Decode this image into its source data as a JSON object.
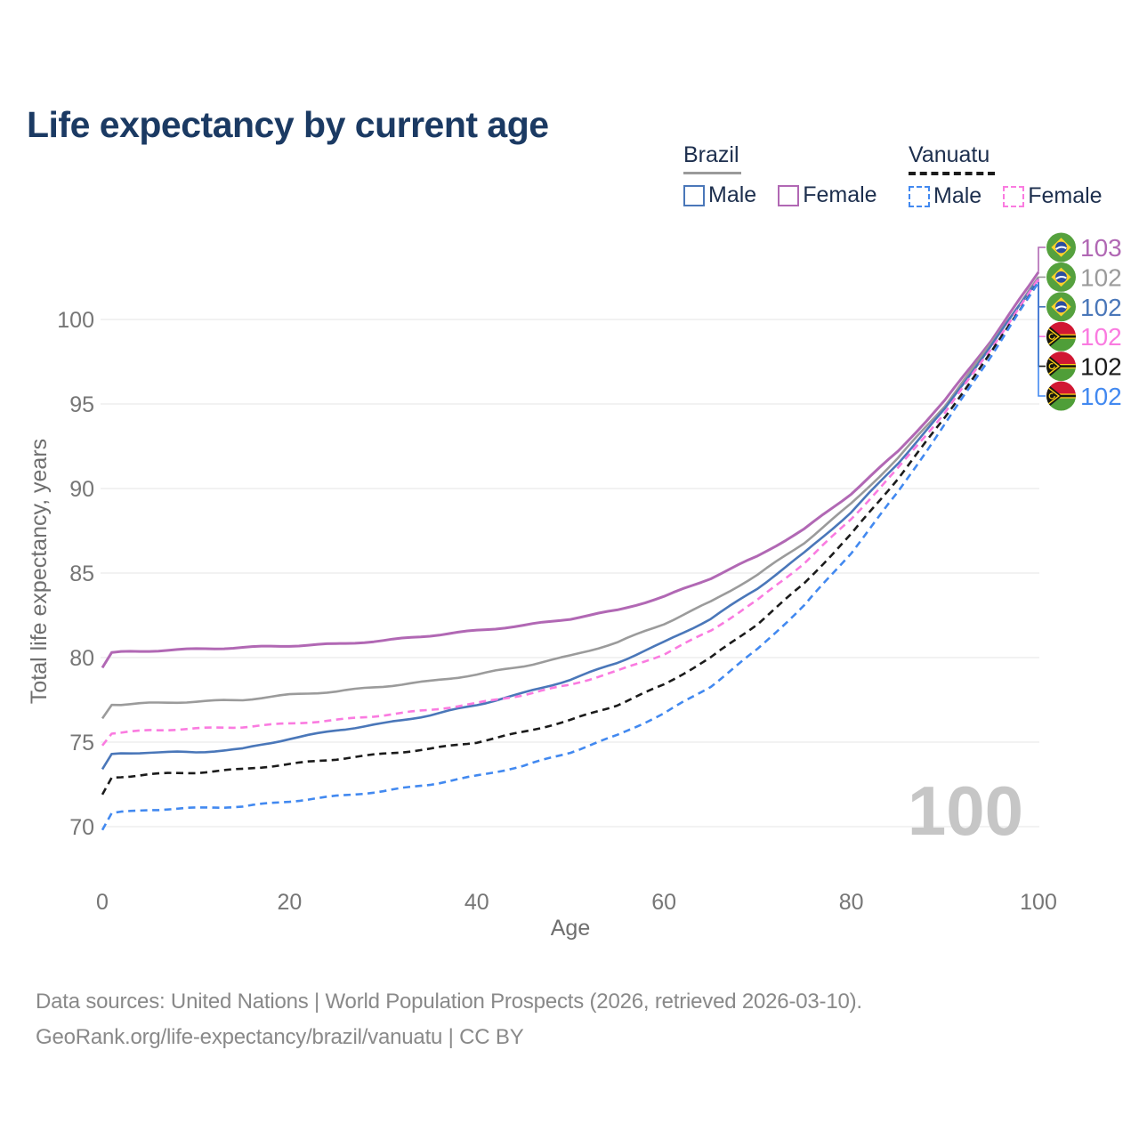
{
  "title": "Life expectancy by current age",
  "watermark": "100",
  "legend": {
    "groups": [
      {
        "label": "Brazil",
        "line_style": "solid",
        "underline_color": "#9a9a9a",
        "items": [
          {
            "label": "Male",
            "color": "#4a77b9"
          },
          {
            "label": "Female",
            "color": "#b168b4"
          }
        ]
      },
      {
        "label": "Vanuatu",
        "line_style": "dashed",
        "underline_color": "#1b1b1b",
        "items": [
          {
            "label": "Male",
            "color": "#4289f0"
          },
          {
            "label": "Female",
            "color": "#fa7be0"
          }
        ]
      }
    ]
  },
  "footer": {
    "line1": "Data sources: United Nations | World Population Prospects (2026, retrieved 2026-03-10).",
    "line2": "GeoRank.org/life-expectancy/brazil/vanuatu | CC BY"
  },
  "chart_data": {
    "type": "line",
    "title": "Life expectancy by current age",
    "xlabel": "Age",
    "ylabel": "Total life expectancy, years",
    "x_ticks": [
      0,
      20,
      40,
      60,
      80,
      100
    ],
    "y_ticks": [
      70,
      75,
      80,
      85,
      90,
      95,
      100
    ],
    "xlim": [
      0,
      100
    ],
    "ylim": [
      69,
      103.5
    ],
    "grid": "horizontal",
    "legend_position": "top-right",
    "x": [
      0,
      1,
      5,
      10,
      15,
      20,
      25,
      30,
      35,
      40,
      45,
      50,
      55,
      60,
      65,
      70,
      75,
      80,
      85,
      90,
      95,
      100
    ],
    "series": [
      {
        "id": "brazil-female",
        "name": "Brazil Female",
        "country": "Brazil",
        "sex": "Female",
        "color": "#b168b4",
        "line_style": "solid",
        "width": 3,
        "flag": "brazil",
        "end_label": "103",
        "values": [
          79.4,
          80.3,
          80.4,
          80.5,
          80.6,
          80.7,
          80.8,
          81.0,
          81.3,
          81.6,
          81.9,
          82.3,
          82.8,
          83.6,
          84.7,
          86.0,
          87.6,
          89.7,
          92.2,
          95.2,
          98.8,
          102.8
        ]
      },
      {
        "id": "brazil-both",
        "name": "Brazil Both sexes",
        "country": "Brazil",
        "sex": "Both",
        "color": "#9b9b9b",
        "line_style": "solid",
        "width": 2.6,
        "flag": "brazil",
        "end_label": "102",
        "values": [
          76.4,
          77.2,
          77.3,
          77.4,
          77.5,
          77.8,
          78.0,
          78.3,
          78.6,
          79.0,
          79.5,
          80.1,
          80.9,
          82.0,
          83.3,
          84.9,
          86.8,
          89.1,
          91.8,
          94.9,
          98.6,
          102.5
        ]
      },
      {
        "id": "brazil-male",
        "name": "Brazil Male",
        "country": "Brazil",
        "sex": "Male",
        "color": "#4a77b9",
        "line_style": "solid",
        "width": 2.6,
        "flag": "brazil",
        "end_label": "102",
        "values": [
          73.4,
          74.3,
          74.4,
          74.4,
          74.6,
          75.2,
          75.7,
          76.1,
          76.6,
          77.2,
          77.9,
          78.7,
          79.7,
          80.9,
          82.3,
          84.1,
          86.2,
          88.6,
          91.5,
          94.7,
          98.5,
          102.4
        ]
      },
      {
        "id": "vanuatu-female",
        "name": "Vanuatu Female",
        "country": "Vanuatu",
        "sex": "Female",
        "color": "#fa7be0",
        "line_style": "dashed",
        "width": 2.6,
        "flag": "vanuatu",
        "end_label": "102",
        "values": [
          74.8,
          75.5,
          75.7,
          75.8,
          75.9,
          76.1,
          76.3,
          76.6,
          76.9,
          77.3,
          77.8,
          78.4,
          79.2,
          80.2,
          81.6,
          83.4,
          85.6,
          88.2,
          91.2,
          94.5,
          98.3,
          102.4
        ]
      },
      {
        "id": "vanuatu-both",
        "name": "Vanuatu Both sexes",
        "country": "Vanuatu",
        "sex": "Both",
        "color": "#1b1b1b",
        "line_style": "dashed",
        "width": 2.6,
        "flag": "vanuatu",
        "end_label": "102",
        "values": [
          71.9,
          72.9,
          73.1,
          73.2,
          73.4,
          73.7,
          74.0,
          74.3,
          74.6,
          75.0,
          75.6,
          76.3,
          77.2,
          78.4,
          80.0,
          82.0,
          84.4,
          87.3,
          90.6,
          94.2,
          98.1,
          102.2
        ]
      },
      {
        "id": "vanuatu-male",
        "name": "Vanuatu Male",
        "country": "Vanuatu",
        "sex": "Male",
        "color": "#4289f0",
        "line_style": "dashed",
        "width": 2.6,
        "flag": "vanuatu",
        "end_label": "102",
        "values": [
          69.8,
          70.8,
          71.0,
          71.1,
          71.2,
          71.5,
          71.8,
          72.1,
          72.5,
          73.0,
          73.6,
          74.4,
          75.4,
          76.7,
          78.3,
          80.5,
          83.1,
          86.2,
          89.8,
          93.8,
          97.9,
          102.2
        ]
      }
    ]
  }
}
